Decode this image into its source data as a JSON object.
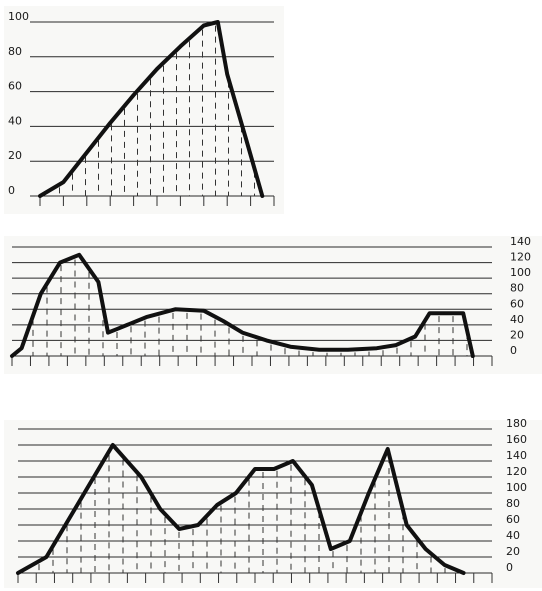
{
  "chart_data": [
    {
      "type": "area",
      "ylim": [
        0,
        100
      ],
      "y_ticks": [
        "0",
        "20",
        "40",
        "60",
        "80",
        "100"
      ],
      "x": [
        0,
        0.1,
        0.2,
        0.3,
        0.4,
        0.5,
        0.6,
        0.7,
        0.76,
        0.8,
        0.88,
        0.95
      ],
      "values": [
        0,
        8,
        25,
        42,
        58,
        73,
        86,
        98,
        100,
        70,
        33,
        0
      ],
      "grid": true,
      "legend": "none"
    },
    {
      "type": "area",
      "ylim": [
        0,
        140
      ],
      "y_ticks": [
        "0",
        "20",
        "40",
        "60",
        "80",
        "100",
        "120",
        "140"
      ],
      "x": [
        0,
        0.02,
        0.06,
        0.1,
        0.14,
        0.18,
        0.2,
        0.22,
        0.28,
        0.34,
        0.4,
        0.44,
        0.48,
        0.53,
        0.58,
        0.64,
        0.7,
        0.76,
        0.8,
        0.84,
        0.87,
        0.9,
        0.94,
        0.96
      ],
      "values": [
        0,
        10,
        80,
        120,
        130,
        95,
        30,
        35,
        50,
        60,
        58,
        45,
        30,
        20,
        12,
        8,
        8,
        10,
        14,
        25,
        55,
        55,
        55,
        0
      ],
      "grid": true,
      "legend": "none"
    },
    {
      "type": "area",
      "ylim": [
        0,
        180
      ],
      "y_ticks": [
        "0",
        "20",
        "40",
        "60",
        "80",
        "100",
        "120",
        "140",
        "160",
        "180"
      ],
      "x": [
        0,
        0.06,
        0.12,
        0.2,
        0.26,
        0.3,
        0.34,
        0.38,
        0.42,
        0.46,
        0.5,
        0.54,
        0.58,
        0.62,
        0.66,
        0.7,
        0.74,
        0.78,
        0.82,
        0.86,
        0.9,
        0.94
      ],
      "values": [
        0,
        20,
        80,
        160,
        120,
        80,
        55,
        60,
        85,
        100,
        130,
        130,
        140,
        110,
        30,
        40,
        100,
        155,
        60,
        30,
        10,
        0
      ],
      "grid": true,
      "legend": "none"
    }
  ]
}
